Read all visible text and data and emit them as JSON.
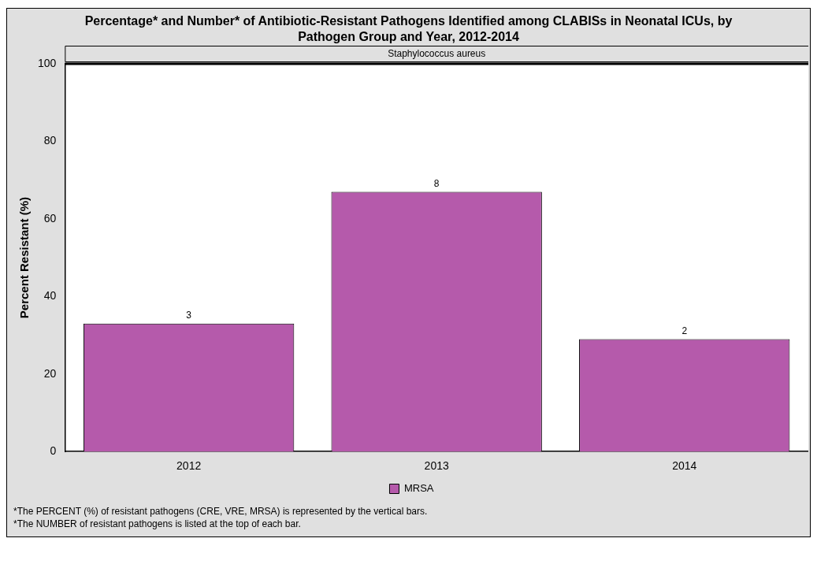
{
  "chart_data": {
    "type": "bar",
    "title": "Percentage* and Number* of Antibiotic-Resistant Pathogens Identified among CLABISs in Neonatal ICUs, by Pathogen Group and Year, 2012-2014",
    "ylabel": "Percent Resistant (%)",
    "categories": [
      "2012",
      "2013",
      "2014"
    ],
    "series": [
      {
        "name": "MRSA",
        "color": "#b55aab",
        "values": [
          33,
          67,
          29
        ]
      }
    ],
    "ylim": [
      0,
      100
    ],
    "yticks": [
      0,
      20,
      40,
      60,
      80,
      100
    ],
    "grid": false,
    "legend": "bottom",
    "annotations": [
      "Staphylococcus aureus",
      "*The PERCENT (%) of resistant pathogens (CRE, VRE, MRSA) is represented by the vertical bars.",
      "*The NUMBER of resistant pathogens is listed at the top of each bar.",
      {
        "text": "3",
        "x": "2012",
        "y": 33
      },
      {
        "text": "8",
        "x": "2013",
        "y": 67
      },
      {
        "text": "2",
        "x": "2014",
        "y": 29
      }
    ]
  }
}
